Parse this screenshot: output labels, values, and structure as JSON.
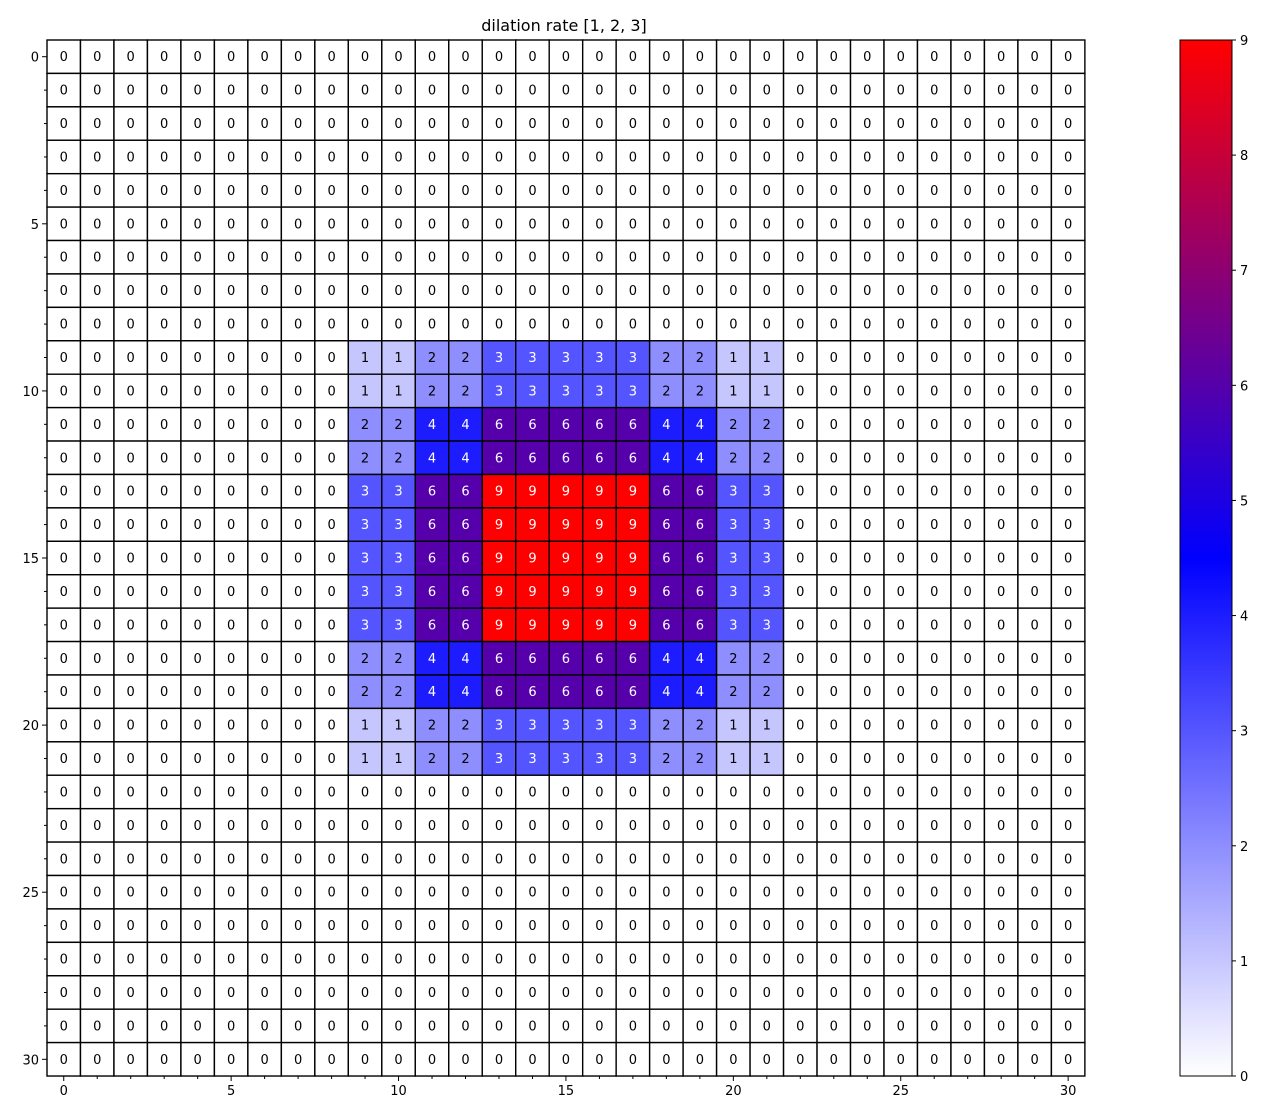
{
  "chart_data": {
    "type": "heatmap",
    "title": "dilation rate [1, 2, 3]",
    "xlabel": "",
    "ylabel": "",
    "rows": 31,
    "cols": 31,
    "x_ticks": [
      0,
      5,
      10,
      15,
      20,
      25,
      30
    ],
    "y_ticks": [
      0,
      5,
      10,
      15,
      20,
      25,
      30
    ],
    "vmin": 0,
    "vmax": 9,
    "colorbar_ticks": [
      0,
      1,
      2,
      3,
      4,
      5,
      6,
      7,
      8,
      9
    ],
    "colormap": [
      "#ffffff",
      "#0000ff",
      "#ff0000"
    ],
    "grid": true,
    "values": [
      [
        0,
        0,
        0,
        0,
        0,
        0,
        0,
        0,
        0,
        0,
        0,
        0,
        0,
        0,
        0,
        0,
        0,
        0,
        0,
        0,
        0,
        0,
        0,
        0,
        0,
        0,
        0,
        0,
        0,
        0,
        0
      ],
      [
        0,
        0,
        0,
        0,
        0,
        0,
        0,
        0,
        0,
        0,
        0,
        0,
        0,
        0,
        0,
        0,
        0,
        0,
        0,
        0,
        0,
        0,
        0,
        0,
        0,
        0,
        0,
        0,
        0,
        0,
        0
      ],
      [
        0,
        0,
        0,
        0,
        0,
        0,
        0,
        0,
        0,
        0,
        0,
        0,
        0,
        0,
        0,
        0,
        0,
        0,
        0,
        0,
        0,
        0,
        0,
        0,
        0,
        0,
        0,
        0,
        0,
        0,
        0
      ],
      [
        0,
        0,
        0,
        0,
        0,
        0,
        0,
        0,
        0,
        0,
        0,
        0,
        0,
        0,
        0,
        0,
        0,
        0,
        0,
        0,
        0,
        0,
        0,
        0,
        0,
        0,
        0,
        0,
        0,
        0,
        0
      ],
      [
        0,
        0,
        0,
        0,
        0,
        0,
        0,
        0,
        0,
        0,
        0,
        0,
        0,
        0,
        0,
        0,
        0,
        0,
        0,
        0,
        0,
        0,
        0,
        0,
        0,
        0,
        0,
        0,
        0,
        0,
        0
      ],
      [
        0,
        0,
        0,
        0,
        0,
        0,
        0,
        0,
        0,
        0,
        0,
        0,
        0,
        0,
        0,
        0,
        0,
        0,
        0,
        0,
        0,
        0,
        0,
        0,
        0,
        0,
        0,
        0,
        0,
        0,
        0
      ],
      [
        0,
        0,
        0,
        0,
        0,
        0,
        0,
        0,
        0,
        0,
        0,
        0,
        0,
        0,
        0,
        0,
        0,
        0,
        0,
        0,
        0,
        0,
        0,
        0,
        0,
        0,
        0,
        0,
        0,
        0,
        0
      ],
      [
        0,
        0,
        0,
        0,
        0,
        0,
        0,
        0,
        0,
        0,
        0,
        0,
        0,
        0,
        0,
        0,
        0,
        0,
        0,
        0,
        0,
        0,
        0,
        0,
        0,
        0,
        0,
        0,
        0,
        0,
        0
      ],
      [
        0,
        0,
        0,
        0,
        0,
        0,
        0,
        0,
        0,
        0,
        0,
        0,
        0,
        0,
        0,
        0,
        0,
        0,
        0,
        0,
        0,
        0,
        0,
        0,
        0,
        0,
        0,
        0,
        0,
        0,
        0
      ],
      [
        0,
        0,
        0,
        0,
        0,
        0,
        0,
        0,
        0,
        1,
        1,
        2,
        2,
        3,
        3,
        3,
        3,
        3,
        2,
        2,
        1,
        1,
        0,
        0,
        0,
        0,
        0,
        0,
        0,
        0,
        0
      ],
      [
        0,
        0,
        0,
        0,
        0,
        0,
        0,
        0,
        0,
        1,
        1,
        2,
        2,
        3,
        3,
        3,
        3,
        3,
        2,
        2,
        1,
        1,
        0,
        0,
        0,
        0,
        0,
        0,
        0,
        0,
        0
      ],
      [
        0,
        0,
        0,
        0,
        0,
        0,
        0,
        0,
        0,
        2,
        2,
        4,
        4,
        6,
        6,
        6,
        6,
        6,
        4,
        4,
        2,
        2,
        0,
        0,
        0,
        0,
        0,
        0,
        0,
        0,
        0
      ],
      [
        0,
        0,
        0,
        0,
        0,
        0,
        0,
        0,
        0,
        2,
        2,
        4,
        4,
        6,
        6,
        6,
        6,
        6,
        4,
        4,
        2,
        2,
        0,
        0,
        0,
        0,
        0,
        0,
        0,
        0,
        0
      ],
      [
        0,
        0,
        0,
        0,
        0,
        0,
        0,
        0,
        0,
        3,
        3,
        6,
        6,
        9,
        9,
        9,
        9,
        9,
        6,
        6,
        3,
        3,
        0,
        0,
        0,
        0,
        0,
        0,
        0,
        0,
        0
      ],
      [
        0,
        0,
        0,
        0,
        0,
        0,
        0,
        0,
        0,
        3,
        3,
        6,
        6,
        9,
        9,
        9,
        9,
        9,
        6,
        6,
        3,
        3,
        0,
        0,
        0,
        0,
        0,
        0,
        0,
        0,
        0
      ],
      [
        0,
        0,
        0,
        0,
        0,
        0,
        0,
        0,
        0,
        3,
        3,
        6,
        6,
        9,
        9,
        9,
        9,
        9,
        6,
        6,
        3,
        3,
        0,
        0,
        0,
        0,
        0,
        0,
        0,
        0,
        0
      ],
      [
        0,
        0,
        0,
        0,
        0,
        0,
        0,
        0,
        0,
        3,
        3,
        6,
        6,
        9,
        9,
        9,
        9,
        9,
        6,
        6,
        3,
        3,
        0,
        0,
        0,
        0,
        0,
        0,
        0,
        0,
        0
      ],
      [
        0,
        0,
        0,
        0,
        0,
        0,
        0,
        0,
        0,
        3,
        3,
        6,
        6,
        9,
        9,
        9,
        9,
        9,
        6,
        6,
        3,
        3,
        0,
        0,
        0,
        0,
        0,
        0,
        0,
        0,
        0
      ],
      [
        0,
        0,
        0,
        0,
        0,
        0,
        0,
        0,
        0,
        2,
        2,
        4,
        4,
        6,
        6,
        6,
        6,
        6,
        4,
        4,
        2,
        2,
        0,
        0,
        0,
        0,
        0,
        0,
        0,
        0,
        0
      ],
      [
        0,
        0,
        0,
        0,
        0,
        0,
        0,
        0,
        0,
        2,
        2,
        4,
        4,
        6,
        6,
        6,
        6,
        6,
        4,
        4,
        2,
        2,
        0,
        0,
        0,
        0,
        0,
        0,
        0,
        0,
        0
      ],
      [
        0,
        0,
        0,
        0,
        0,
        0,
        0,
        0,
        0,
        1,
        1,
        2,
        2,
        3,
        3,
        3,
        3,
        3,
        2,
        2,
        1,
        1,
        0,
        0,
        0,
        0,
        0,
        0,
        0,
        0,
        0
      ],
      [
        0,
        0,
        0,
        0,
        0,
        0,
        0,
        0,
        0,
        1,
        1,
        2,
        2,
        3,
        3,
        3,
        3,
        3,
        2,
        2,
        1,
        1,
        0,
        0,
        0,
        0,
        0,
        0,
        0,
        0,
        0
      ],
      [
        0,
        0,
        0,
        0,
        0,
        0,
        0,
        0,
        0,
        0,
        0,
        0,
        0,
        0,
        0,
        0,
        0,
        0,
        0,
        0,
        0,
        0,
        0,
        0,
        0,
        0,
        0,
        0,
        0,
        0,
        0
      ],
      [
        0,
        0,
        0,
        0,
        0,
        0,
        0,
        0,
        0,
        0,
        0,
        0,
        0,
        0,
        0,
        0,
        0,
        0,
        0,
        0,
        0,
        0,
        0,
        0,
        0,
        0,
        0,
        0,
        0,
        0,
        0
      ],
      [
        0,
        0,
        0,
        0,
        0,
        0,
        0,
        0,
        0,
        0,
        0,
        0,
        0,
        0,
        0,
        0,
        0,
        0,
        0,
        0,
        0,
        0,
        0,
        0,
        0,
        0,
        0,
        0,
        0,
        0,
        0
      ],
      [
        0,
        0,
        0,
        0,
        0,
        0,
        0,
        0,
        0,
        0,
        0,
        0,
        0,
        0,
        0,
        0,
        0,
        0,
        0,
        0,
        0,
        0,
        0,
        0,
        0,
        0,
        0,
        0,
        0,
        0,
        0
      ],
      [
        0,
        0,
        0,
        0,
        0,
        0,
        0,
        0,
        0,
        0,
        0,
        0,
        0,
        0,
        0,
        0,
        0,
        0,
        0,
        0,
        0,
        0,
        0,
        0,
        0,
        0,
        0,
        0,
        0,
        0,
        0
      ],
      [
        0,
        0,
        0,
        0,
        0,
        0,
        0,
        0,
        0,
        0,
        0,
        0,
        0,
        0,
        0,
        0,
        0,
        0,
        0,
        0,
        0,
        0,
        0,
        0,
        0,
        0,
        0,
        0,
        0,
        0,
        0
      ],
      [
        0,
        0,
        0,
        0,
        0,
        0,
        0,
        0,
        0,
        0,
        0,
        0,
        0,
        0,
        0,
        0,
        0,
        0,
        0,
        0,
        0,
        0,
        0,
        0,
        0,
        0,
        0,
        0,
        0,
        0,
        0
      ],
      [
        0,
        0,
        0,
        0,
        0,
        0,
        0,
        0,
        0,
        0,
        0,
        0,
        0,
        0,
        0,
        0,
        0,
        0,
        0,
        0,
        0,
        0,
        0,
        0,
        0,
        0,
        0,
        0,
        0,
        0,
        0
      ],
      [
        0,
        0,
        0,
        0,
        0,
        0,
        0,
        0,
        0,
        0,
        0,
        0,
        0,
        0,
        0,
        0,
        0,
        0,
        0,
        0,
        0,
        0,
        0,
        0,
        0,
        0,
        0,
        0,
        0,
        0,
        0
      ]
    ]
  }
}
